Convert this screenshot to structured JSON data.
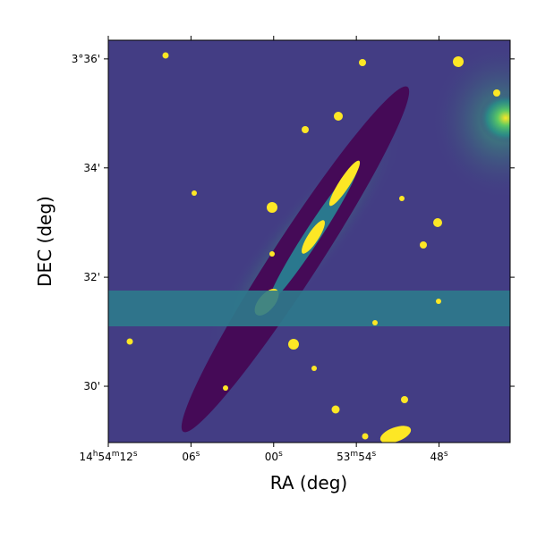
{
  "chart_data": {
    "type": "image",
    "xlabel": "RA (deg)",
    "ylabel": "DEC (deg)",
    "xlim": [
      223.55,
      223.4285
    ],
    "ylim": [
      3.4828,
      3.6057
    ],
    "xticks": [
      {
        "value": 223.55,
        "label": "14h54m12s"
      },
      {
        "value": 223.525,
        "label": "06s"
      },
      {
        "value": 223.5,
        "label": "00s"
      },
      {
        "value": 223.475,
        "label": "53m54s"
      },
      {
        "value": 223.45,
        "label": "48s"
      }
    ],
    "yticks": [
      {
        "value": 3.6,
        "label": "3°36'"
      },
      {
        "value": 3.5667,
        "label": "34'"
      },
      {
        "value": 3.5333,
        "label": "32'"
      },
      {
        "value": 3.5,
        "label": "30'"
      }
    ]
  }
}
